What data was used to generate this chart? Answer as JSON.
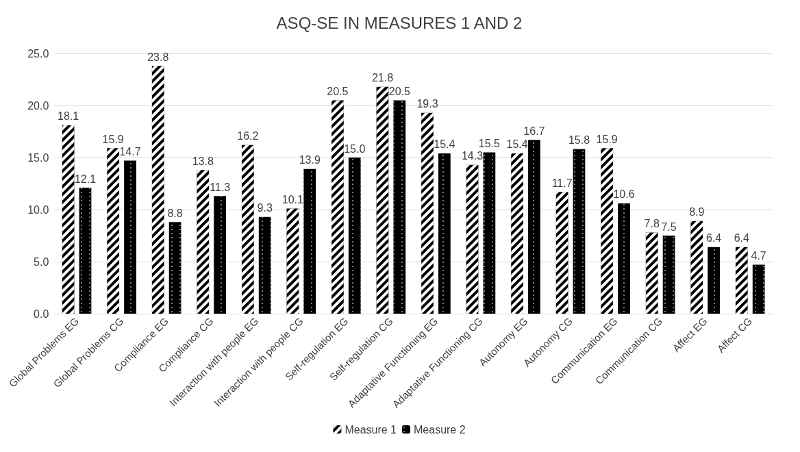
{
  "chart_data": {
    "type": "bar",
    "title": "ASQ-SE IN MEASURES 1 AND 2",
    "categories": [
      "Global Problems EG",
      "Global Problems CG",
      "Compliance EG",
      "Compliance CG",
      "Interaction with people EG",
      "Interaction with people CG",
      "Self-regulation EG",
      "Self-regulation CG",
      "Adaptative Functioning EG",
      "Adaptative Functioning CG",
      "Autonomy EG",
      "Autonomy CG",
      "Communication EG",
      "Communication CG",
      "Affect EG",
      "Affect CG"
    ],
    "series": [
      {
        "name": "Measure 1",
        "color": "#000000",
        "values": [
          18.1,
          15.9,
          23.8,
          13.8,
          16.2,
          10.1,
          20.5,
          21.8,
          19.3,
          14.3,
          15.4,
          11.7,
          15.9,
          7.8,
          8.9,
          6.4
        ],
        "value_labels": [
          "18.1",
          "15.9",
          "23.8",
          "13.8",
          "16.2",
          "10.1",
          "20.5",
          "21.8",
          "19.3",
          "14.3",
          "15.4",
          "11.7",
          "15.9",
          "7.8",
          "8.9",
          "6.4"
        ]
      },
      {
        "name": "Measure 2",
        "color": "#000000",
        "values": [
          12.1,
          14.7,
          8.8,
          11.3,
          9.3,
          13.9,
          15.0,
          20.5,
          15.4,
          15.5,
          16.7,
          15.8,
          10.6,
          7.5,
          6.4,
          4.7
        ],
        "value_labels": [
          "12.1",
          "14.7",
          "8.8",
          "11.3",
          "9.3",
          "13.9",
          "15.0",
          "20.5",
          "15.4",
          "15.5",
          "16.7",
          "15.8",
          "10.6",
          "7.5",
          "6.4",
          "4.7"
        ]
      }
    ],
    "ylim": [
      0,
      25
    ],
    "yticks": [
      {
        "value": 0,
        "label": "0.0"
      },
      {
        "value": 5,
        "label": "5.0"
      },
      {
        "value": 10,
        "label": "10.0"
      },
      {
        "value": 15,
        "label": "15.0"
      },
      {
        "value": 20,
        "label": "20.0"
      },
      {
        "value": 25,
        "label": "25.0"
      }
    ],
    "grid": "y",
    "legend": "bottom"
  }
}
